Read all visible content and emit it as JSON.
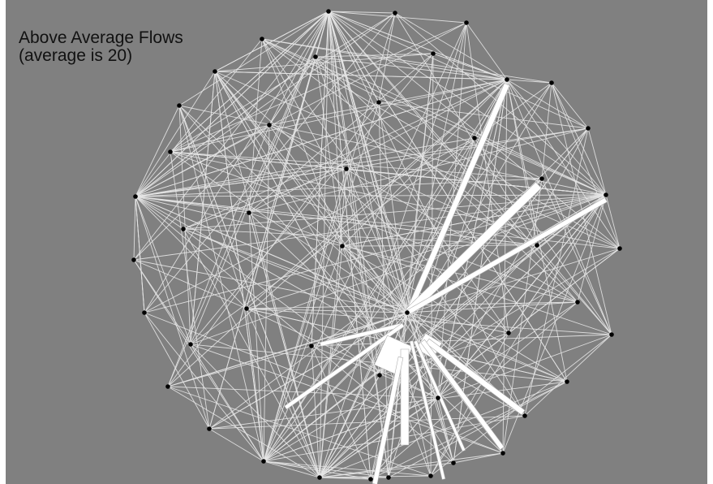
{
  "title": {
    "line1": "Above Average Flows",
    "line2": "(average is 20)"
  },
  "colors": {
    "background": "#808080",
    "edge": "#e6e6e6",
    "flow": "#ffffff",
    "node": "#000000",
    "text": "#111111"
  }
}
